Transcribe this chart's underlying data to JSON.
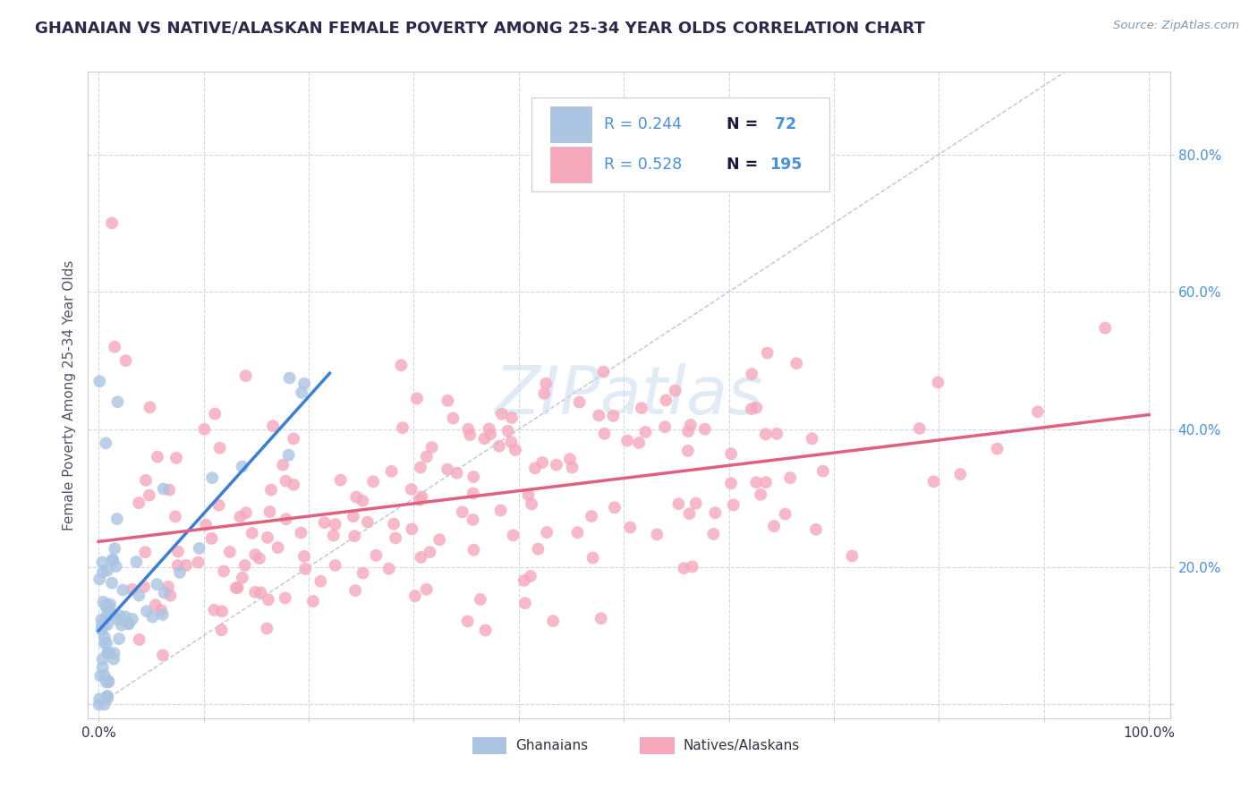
{
  "title": "GHANAIAN VS NATIVE/ALASKAN FEMALE POVERTY AMONG 25-34 YEAR OLDS CORRELATION CHART",
  "source": "Source: ZipAtlas.com",
  "ylabel": "Female Poverty Among 25-34 Year Olds",
  "ghanaian_R": 0.244,
  "ghanaian_N": 72,
  "native_R": 0.528,
  "native_N": 195,
  "ghanaian_color": "#aac4e2",
  "native_color": "#f5a8bc",
  "ghanaian_line_color": "#3a7fd5",
  "native_line_color": "#e06080",
  "diagonal_color": "#a8b8d0",
  "watermark": "ZIPatlas",
  "background_color": "#ffffff",
  "plot_bg_color": "#ffffff",
  "title_color": "#2a2a4a",
  "legend_text_color": "#4a90d9",
  "legend_N_color": "#1a1a3a",
  "tick_label_color": "#4a90d9",
  "ylabel_color": "#555566",
  "xlim": [
    0.0,
    1.0
  ],
  "ylim": [
    0.0,
    0.9
  ],
  "marker_size": 100
}
